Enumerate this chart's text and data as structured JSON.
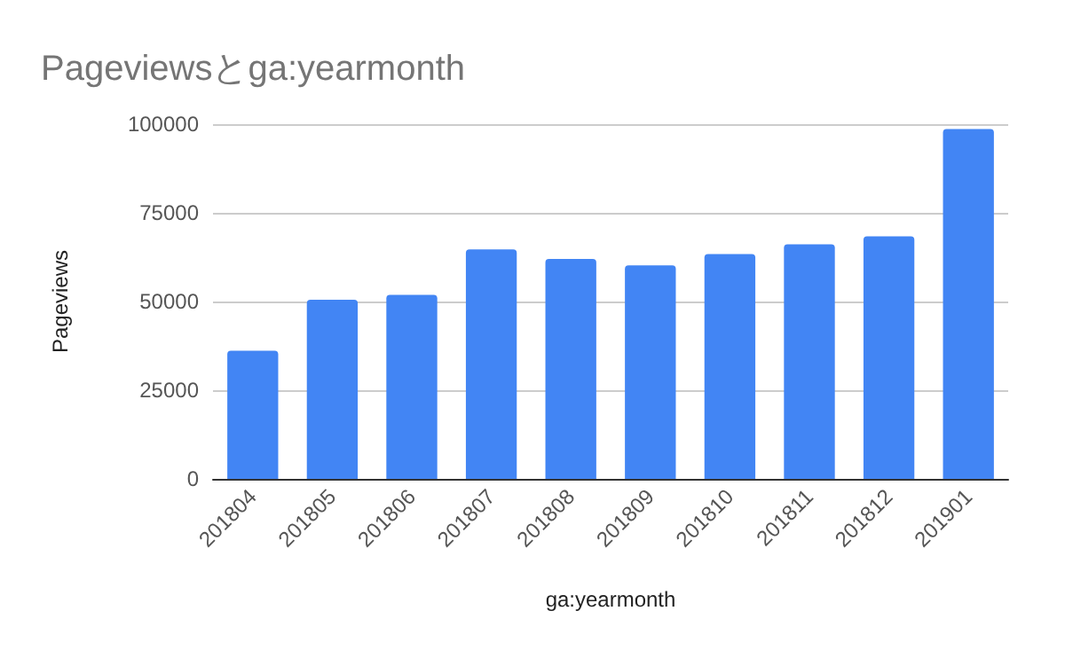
{
  "chart_data": {
    "type": "bar",
    "title": "Pageviewsとga:yearmonth",
    "xlabel": "ga:yearmonth",
    "ylabel": "Pageviews",
    "categories": [
      "201804",
      "201805",
      "201806",
      "201807",
      "201808",
      "201809",
      "201810",
      "201811",
      "201812",
      "201901"
    ],
    "values": [
      36100,
      50500,
      51900,
      64700,
      62000,
      60200,
      63400,
      66100,
      68400,
      98600
    ],
    "color": "#4285f4",
    "ylim": [
      0,
      100000
    ],
    "yticks": [
      0,
      25000,
      50000,
      75000,
      100000
    ],
    "grid": "y"
  }
}
